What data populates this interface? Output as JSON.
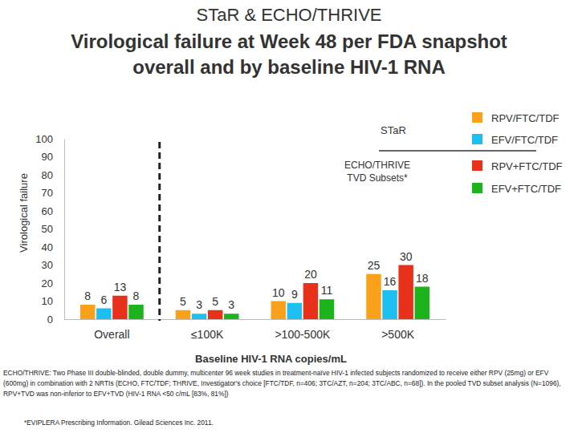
{
  "chart_data": {
    "type": "bar",
    "title": "STaR & ECHO/THRIVE",
    "subtitle": [
      "Virological failure at Week 48  per FDA snapshot",
      "overall and by baseline HIV-1 RNA"
    ],
    "x_label": "Baseline HIV-1 RNA copies/mL",
    "y_label": "Virological failure",
    "categories": [
      "Overall",
      "≤100K",
      ">100-500K",
      ">500K"
    ],
    "series": [
      {
        "name": "RPV/FTC/TDF",
        "color": "#f9a11b",
        "values": [
          8,
          5,
          10,
          25
        ]
      },
      {
        "name": "EFV/FTC/TDF",
        "color": "#1cbff0",
        "values": [
          6,
          3,
          9,
          16
        ]
      },
      {
        "name": "RPV+FTC/TDF",
        "color": "#e8311a",
        "values": [
          13,
          5,
          20,
          30
        ]
      },
      {
        "name": "EFV+FTC/TDF",
        "color": "#1db31d",
        "values": [
          8,
          3,
          11,
          18
        ]
      }
    ],
    "ylim": [
      0,
      100
    ],
    "yticks": [
      0,
      10,
      20,
      30,
      40,
      50,
      60,
      70,
      80,
      90,
      100
    ],
    "grid": false,
    "data_labels": true,
    "legend": "upper right",
    "annotations": [
      "STaR",
      "ECHO/THRIVE TVD Subsets*"
    ],
    "footnotes": [
      "ECHO/THRIVE: Two Phase III double-blinded, double dummy, multicenter 96 week studies in treatment-naïve HIV-1 infected subjects randomized to receive either RPV (25mg) or EFV (600mg) in combination with 2 NRTIs (ECHO, FTC/TDF; THRIVE, Investigator's choice [FTC/TDF, n=406; 3TC/AZT, n=204; 3TC/ABC, n=68]).  In the pooled TVD subset analysis (N=1096), RPV+TVD was non-inferior to EFV+TVD (HIV-1 RNA <50 c/mL [83%, 81%])",
      "*EVIPLERA Prescribing Information. Gilead Sciences Inc. 2011."
    ]
  }
}
